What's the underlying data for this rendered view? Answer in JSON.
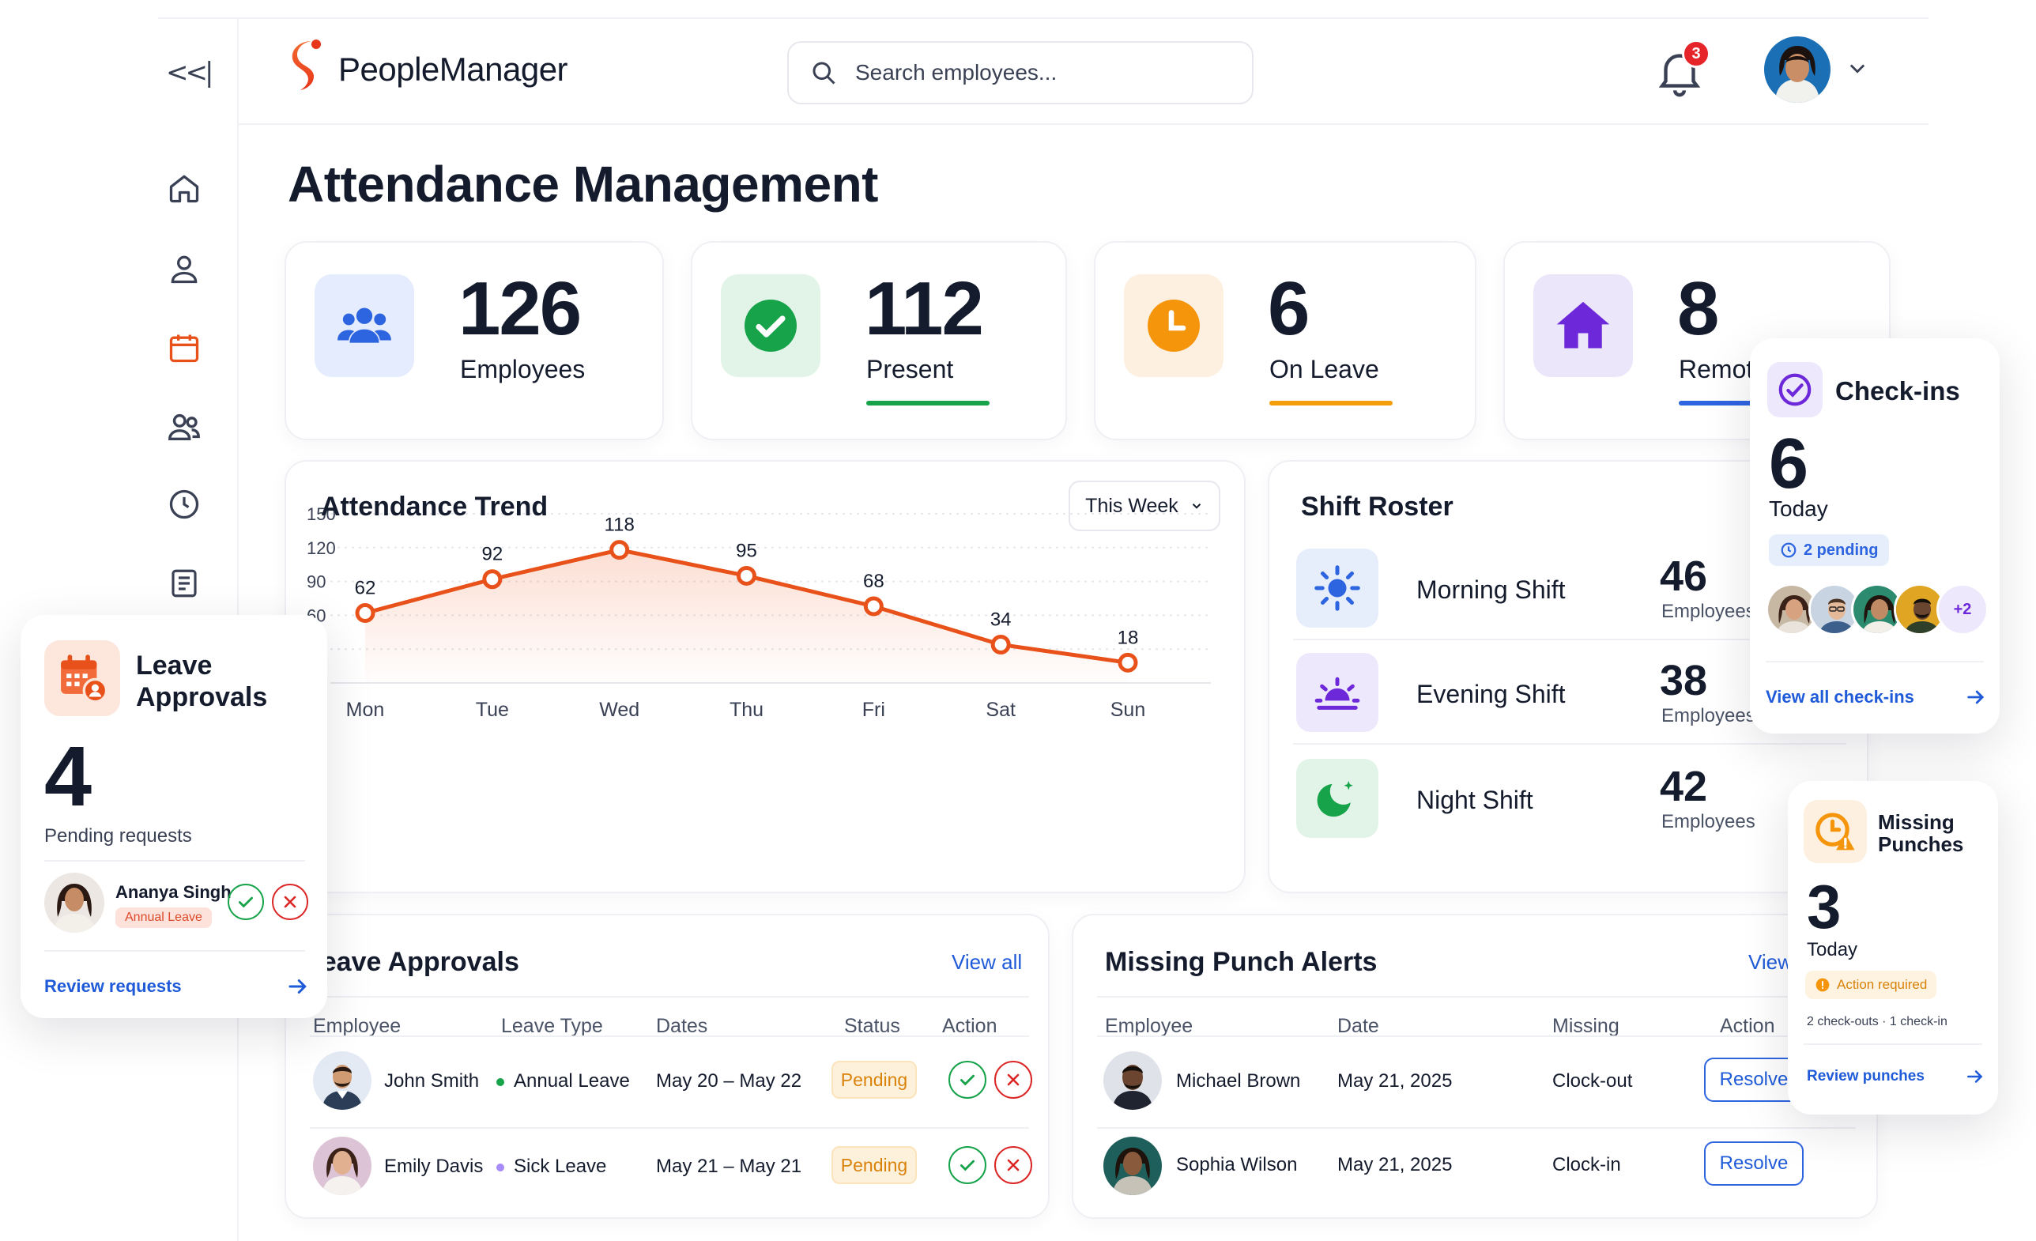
{
  "app": {
    "name": "PeopleManager",
    "collapse_glyph": "<<|"
  },
  "search": {
    "placeholder": "Search employees..."
  },
  "notifications": {
    "count": "3"
  },
  "sidebar": {
    "items": [
      "home-icon",
      "user-icon",
      "calendar-icon",
      "team-icon",
      "clock-icon",
      "report-icon"
    ],
    "active": "calendar-icon"
  },
  "page": {
    "title": "Attendance Management"
  },
  "stats": [
    {
      "value": "126",
      "label": "Employees",
      "icon": "users-icon",
      "color": "#2d64e0"
    },
    {
      "value": "112",
      "label": "Present",
      "icon": "check-icon",
      "color": "#16a34a"
    },
    {
      "value": "6",
      "label": "On Leave",
      "icon": "clock-icon",
      "color": "#f59e0b"
    },
    {
      "value": "8",
      "label": "Remote",
      "icon": "house-icon",
      "color": "#6d28d9"
    }
  ],
  "trend": {
    "title": "Attendance Trend",
    "range_select": "This Week",
    "chart_data": {
      "type": "area",
      "categories": [
        "Mon",
        "Tue",
        "Wed",
        "Thu",
        "Fri",
        "Sat",
        "Sun"
      ],
      "values": [
        62,
        92,
        118,
        95,
        68,
        34,
        18
      ],
      "yticks": [
        "150",
        "120",
        "90",
        "60",
        "30",
        "0"
      ],
      "ylim": [
        0,
        150
      ],
      "grid": true,
      "color": "#e8521a"
    }
  },
  "roster": {
    "title": "Shift Roster",
    "shifts": [
      {
        "name": "Morning Shift",
        "count": "46",
        "sub": "Employees",
        "icon": "sun-icon"
      },
      {
        "name": "Evening Shift",
        "count": "38",
        "sub": "Employees",
        "icon": "sunset-icon"
      },
      {
        "name": "Night Shift",
        "count": "42",
        "sub": "Employees",
        "icon": "moon-icon"
      }
    ]
  },
  "leave_table": {
    "title": "Leave Approvals",
    "view_all": "View all",
    "headers": [
      "Employee",
      "Leave Type",
      "Dates",
      "Status",
      "Action"
    ],
    "rows": [
      {
        "name": "John Smith",
        "type": "Annual Leave",
        "dates": "May 20 – May 22",
        "status": "Pending"
      },
      {
        "name": "Emily Davis",
        "type": "Sick Leave",
        "dates": "May 21 – May 21",
        "status": "Pending"
      }
    ]
  },
  "punch_table": {
    "title": "Missing Punch Alerts",
    "view_all": "View",
    "headers": [
      "Employee",
      "Date",
      "Missing",
      "Action"
    ],
    "rows": [
      {
        "name": "Michael Brown",
        "date": "May 21, 2025",
        "missing": "Clock-out",
        "action": "Resolve"
      },
      {
        "name": "Sophia Wilson",
        "date": "May 21, 2025",
        "missing": "Clock-in",
        "action": "Resolve"
      }
    ]
  },
  "leave_float": {
    "title_line1": "Leave",
    "title_line2": "Approvals",
    "count": "4",
    "sub": "Pending requests",
    "person": "Ananya Singh",
    "person_tag": "Annual Leave",
    "link": "Review requests"
  },
  "checkins_float": {
    "title": "Check-ins",
    "count": "6",
    "sub": "Today",
    "pending": "2 pending",
    "more": "+2",
    "link": "View all check-ins"
  },
  "missing_float": {
    "title_line1": "Missing",
    "title_line2": "Punches",
    "count": "3",
    "sub": "Today",
    "badge": "Action required",
    "detail": "2 check-outs · 1 check-in",
    "link": "Review punches"
  }
}
